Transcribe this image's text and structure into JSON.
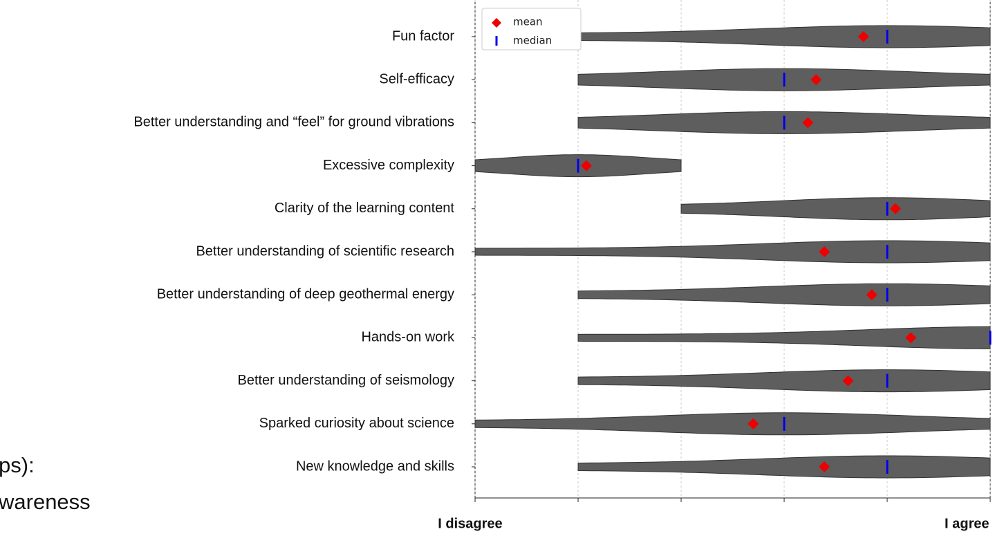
{
  "chart_data": {
    "type": "violin",
    "categories": [
      "Fun factor",
      "Self-efficacy",
      "Better understanding and “feel” for ground vibrations",
      "Excessive complexity",
      "Clarity of the learning content",
      "Better understanding of scientific research",
      "Better understanding of deep geothermal energy",
      "Hands-on work",
      "Better understanding of seismology",
      "Sparked curiosity about science",
      "New knowledge and skills"
    ],
    "series": [
      {
        "name": "mean",
        "color": "#ee0000",
        "values": [
          3.77,
          3.31,
          3.23,
          1.08,
          4.08,
          3.39,
          3.85,
          4.23,
          3.62,
          2.7,
          3.39
        ]
      },
      {
        "name": "median",
        "color": "#0000ee",
        "values": [
          4,
          3,
          3,
          1,
          4,
          4,
          4,
          5,
          4,
          3,
          4
        ]
      }
    ],
    "min": [
      1,
      1,
      1,
      0,
      2,
      0,
      1,
      1,
      1,
      0,
      1
    ],
    "max": [
      5,
      5,
      5,
      2,
      5,
      5,
      5,
      5,
      5,
      5,
      5
    ],
    "violin_color": "#5e5e5e",
    "xlim": [
      0,
      5
    ],
    "xticks": [
      0,
      1,
      2,
      3,
      4,
      5
    ],
    "grid": true,
    "x_start_label": "I disagree",
    "x_end_label": "I agree",
    "legend": "upper left",
    "fragments": [
      "ps):",
      "wareness"
    ]
  }
}
